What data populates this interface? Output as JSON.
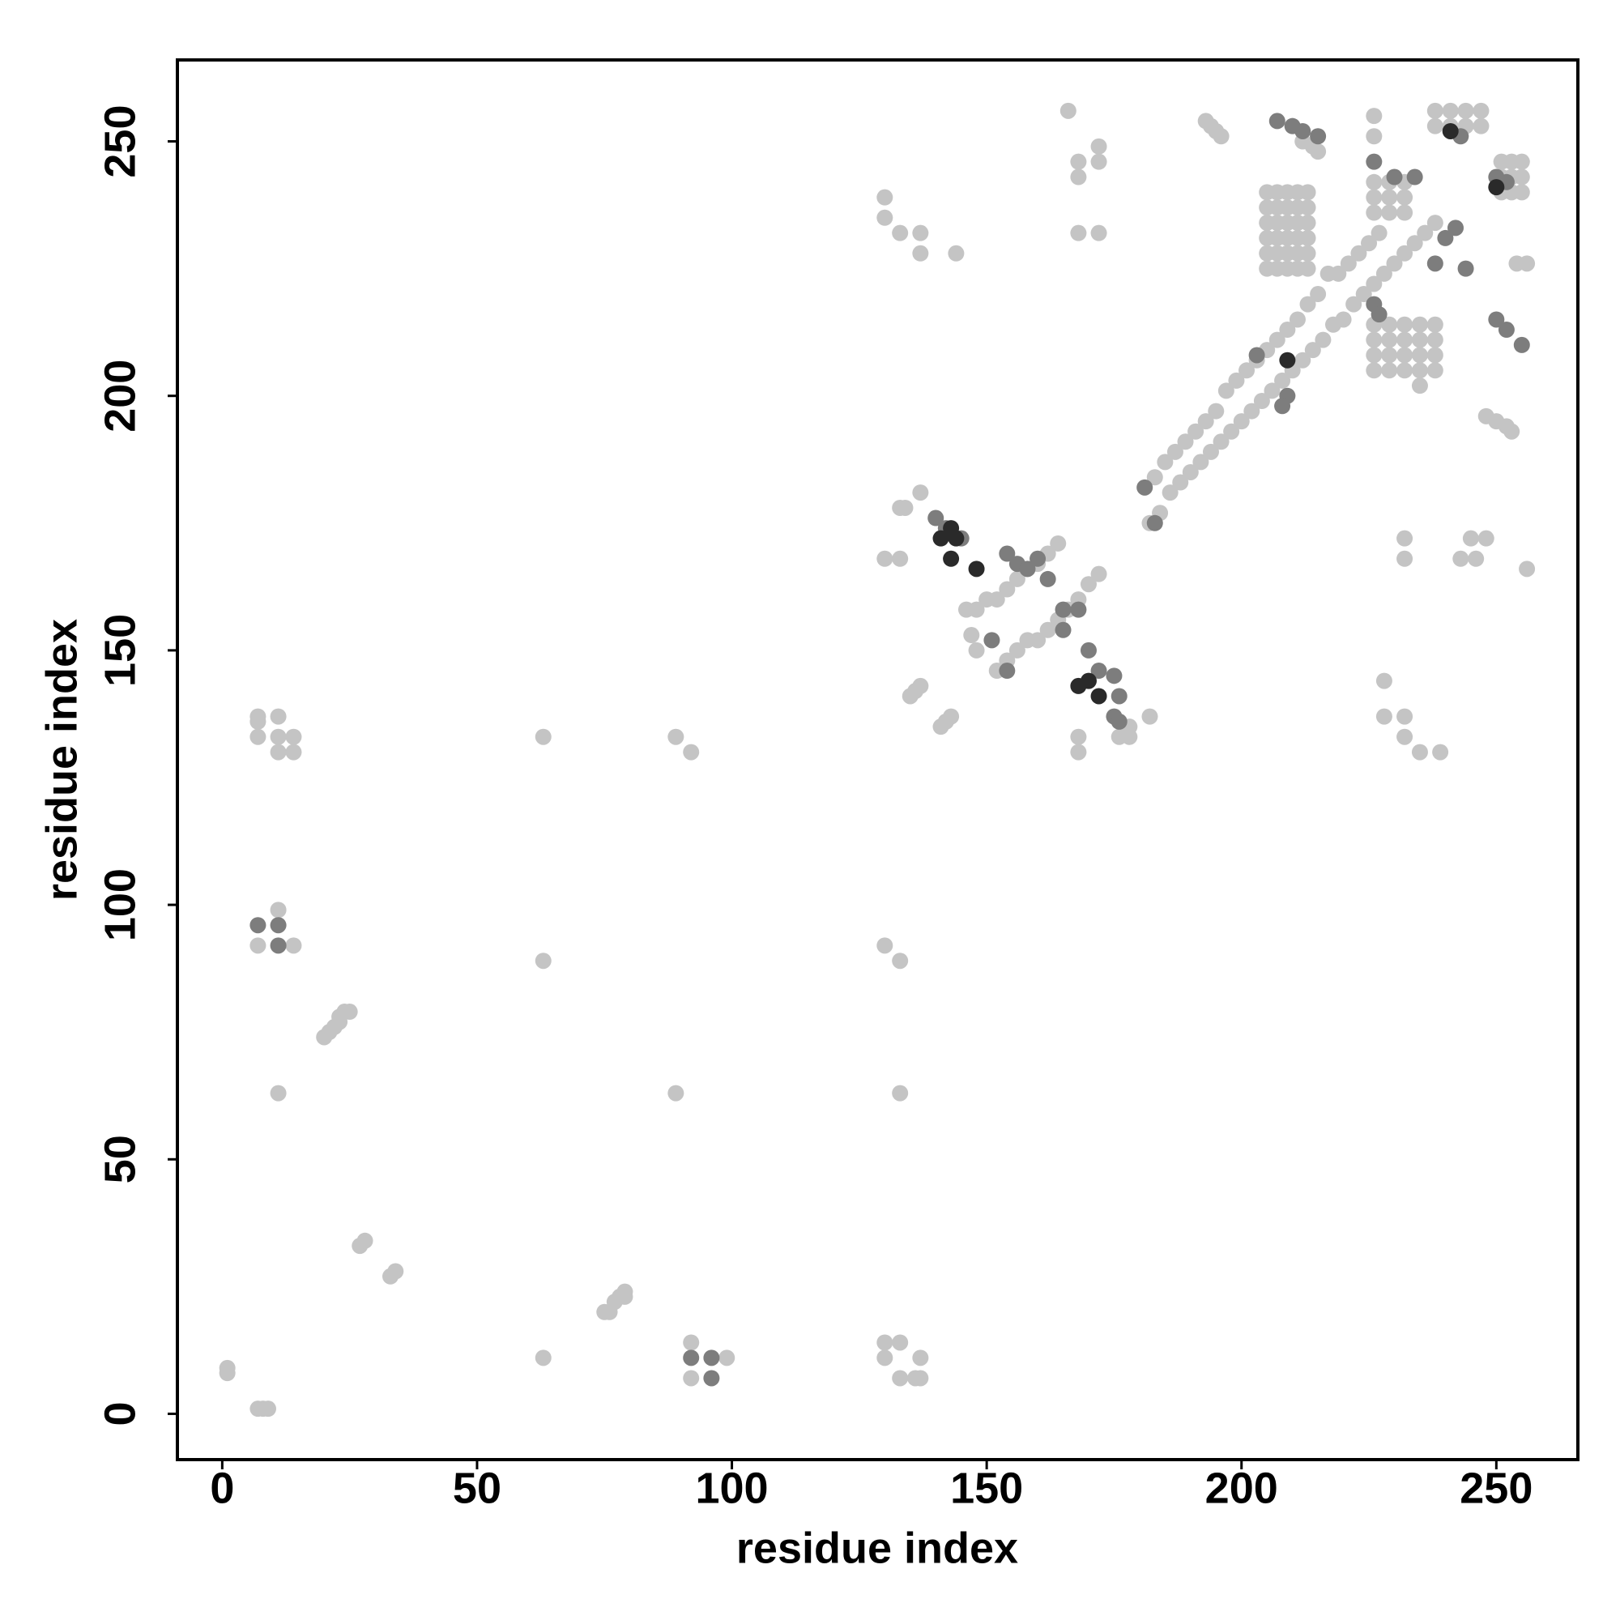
{
  "chart_data": {
    "type": "scatter",
    "x_label": "residue index",
    "y_label": "residue index",
    "xlim": [
      -8.8,
      266
    ],
    "ylim": [
      -9,
      266
    ],
    "xticks": [
      0,
      50,
      100,
      150,
      200,
      250
    ],
    "yticks": [
      0,
      50,
      100,
      150,
      200,
      250
    ],
    "grid": false,
    "series": [
      {
        "color": "#c4c4c4",
        "x": [
          1,
          1,
          7,
          8,
          9,
          27,
          28,
          33,
          34,
          20,
          21,
          22,
          23,
          23,
          24,
          25,
          75,
          76,
          77,
          78,
          79,
          79,
          63,
          63,
          11,
          89,
          63,
          89,
          92,
          133,
          130,
          133,
          7,
          14,
          11,
          7,
          7,
          7,
          11,
          11,
          11,
          14,
          14,
          92,
          92,
          99,
          130,
          130,
          133,
          133,
          136,
          137,
          137,
          166,
          168,
          168,
          172,
          172,
          168,
          172,
          130,
          130,
          133,
          137,
          137,
          144,
          193,
          194,
          195,
          196,
          183,
          185,
          187,
          189,
          191,
          193,
          195,
          197,
          199,
          201,
          203,
          205,
          207,
          209,
          211,
          213,
          215,
          217,
          219,
          221,
          223,
          225,
          227,
          182,
          184,
          186,
          188,
          190,
          192,
          194,
          196,
          198,
          200,
          202,
          204,
          206,
          208,
          210,
          212,
          214,
          216,
          218,
          220,
          222,
          224,
          226,
          228,
          230,
          232,
          234,
          236,
          238,
          146,
          148,
          150,
          152,
          154,
          156,
          158,
          160,
          162,
          164,
          152,
          154,
          156,
          158,
          160,
          162,
          164,
          166,
          168,
          170,
          172,
          141,
          142,
          143,
          135,
          136,
          137,
          130,
          133,
          134,
          137,
          133,
          147,
          148,
          168,
          168,
          176,
          178,
          178,
          182,
          232,
          232,
          243,
          245,
          246,
          248,
          256,
          228,
          228,
          232,
          232,
          235,
          239,
          235,
          205,
          205,
          205,
          205,
          205,
          205,
          207,
          207,
          207,
          207,
          207,
          207,
          209,
          209,
          209,
          209,
          209,
          209,
          211,
          211,
          211,
          211,
          211,
          211,
          213,
          213,
          213,
          213,
          213,
          213,
          226,
          226,
          226,
          226,
          229,
          229,
          229,
          229,
          232,
          232,
          232,
          232,
          235,
          235,
          235,
          235,
          238,
          238,
          238,
          238,
          238,
          238,
          241,
          241,
          244,
          244,
          247,
          247,
          251,
          251,
          251,
          253,
          253,
          253,
          255,
          255,
          255,
          248,
          250,
          252,
          253,
          254,
          256,
          226,
          226,
          226,
          229,
          229,
          229,
          232,
          232,
          232,
          226,
          226,
          212,
          214,
          215
        ],
        "y": [
          8,
          9,
          1,
          1,
          1,
          33,
          34,
          27,
          28,
          74,
          75,
          76,
          77,
          78,
          79,
          79,
          20,
          20,
          22,
          23,
          23,
          24,
          11,
          133,
          63,
          63,
          89,
          133,
          130,
          89,
          92,
          63,
          92,
          92,
          99,
          137,
          136,
          133,
          137,
          133,
          130,
          133,
          130,
          14,
          7,
          11,
          14,
          11,
          14,
          7,
          7,
          7,
          11,
          256,
          246,
          243,
          249,
          246,
          232,
          232,
          239,
          235,
          232,
          232,
          228,
          228,
          254,
          253,
          252,
          251,
          184,
          187,
          189,
          191,
          193,
          195,
          197,
          201,
          203,
          205,
          207,
          209,
          211,
          213,
          215,
          218,
          220,
          224,
          224,
          226,
          228,
          230,
          232,
          175,
          177,
          181,
          183,
          185,
          187,
          189,
          191,
          193,
          195,
          197,
          199,
          201,
          203,
          205,
          207,
          209,
          211,
          214,
          215,
          218,
          220,
          222,
          224,
          226,
          228,
          230,
          232,
          234,
          158,
          158,
          160,
          160,
          162,
          164,
          166,
          167,
          169,
          171,
          146,
          148,
          150,
          152,
          152,
          154,
          156,
          158,
          160,
          163,
          165,
          135,
          136,
          137,
          141,
          142,
          143,
          168,
          168,
          178,
          181,
          178,
          153,
          150,
          133,
          130,
          133,
          133,
          135,
          137,
          172,
          168,
          168,
          172,
          168,
          172,
          166,
          144,
          137,
          137,
          133,
          130,
          130,
          202,
          225,
          228,
          231,
          234,
          237,
          240,
          225,
          228,
          231,
          234,
          237,
          240,
          225,
          228,
          231,
          234,
          237,
          240,
          225,
          228,
          231,
          234,
          237,
          240,
          225,
          228,
          231,
          234,
          237,
          240,
          205,
          208,
          211,
          214,
          205,
          208,
          211,
          214,
          205,
          208,
          211,
          214,
          205,
          208,
          211,
          214,
          205,
          208,
          211,
          214,
          253,
          256,
          253,
          256,
          253,
          256,
          253,
          256,
          240,
          243,
          246,
          240,
          243,
          246,
          240,
          243,
          246,
          196,
          195,
          194,
          193,
          226,
          226,
          236,
          239,
          242,
          236,
          239,
          242,
          236,
          239,
          242,
          255,
          251,
          250,
          249,
          248
        ]
      },
      {
        "color": "#7d7d7d",
        "x": [
          7,
          11,
          11,
          92,
          96,
          96,
          207,
          210,
          212,
          215,
          243,
          250,
          252,
          226,
          230,
          234,
          238,
          240,
          242,
          244,
          250,
          252,
          255,
          226,
          227,
          209,
          208,
          203,
          183,
          181,
          154,
          156,
          158,
          160,
          162,
          165,
          168,
          170,
          175,
          176,
          172,
          140,
          142,
          145,
          151,
          154,
          165,
          175,
          176
        ],
        "y": [
          96,
          96,
          92,
          11,
          11,
          7,
          254,
          253,
          252,
          251,
          251,
          243,
          242,
          246,
          243,
          243,
          226,
          231,
          233,
          225,
          215,
          213,
          210,
          218,
          216,
          200,
          198,
          208,
          175,
          182,
          169,
          167,
          166,
          168,
          164,
          154,
          158,
          150,
          145,
          141,
          146,
          176,
          174,
          172,
          152,
          146,
          158,
          137,
          136
        ]
      },
      {
        "color": "#2a2a2a",
        "x": [
          143,
          144,
          141,
          168,
          172,
          170,
          143,
          148,
          241,
          250,
          209
        ],
        "y": [
          168,
          172,
          172,
          143,
          141,
          144,
          174,
          166,
          252,
          241,
          207
        ]
      }
    ]
  }
}
